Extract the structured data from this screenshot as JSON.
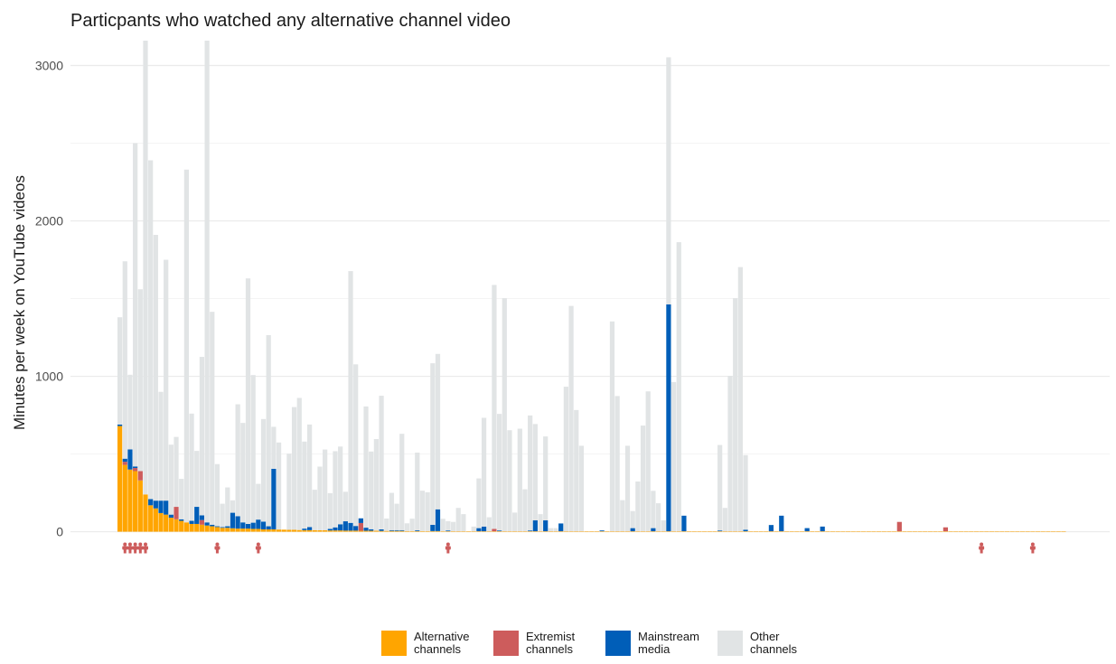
{
  "chart_data": {
    "type": "bar",
    "stacked": true,
    "title": "Particpants who watched any alternative channel video",
    "ylabel": "Minutes per week on YouTube videos",
    "xlabel": "",
    "ylim": [
      -20,
      3160
    ],
    "yticks": [
      0,
      1000,
      2000,
      3000
    ],
    "grid": true,
    "legend_position": "bottom",
    "series": [
      {
        "name": "Alternative\nchannels",
        "color": "#FFA500",
        "values": [
          680,
          430,
          400,
          390,
          330,
          240,
          170,
          150,
          120,
          110,
          90,
          80,
          70,
          60,
          50,
          50,
          45,
          40,
          35,
          30,
          25,
          25,
          22,
          20,
          20,
          20,
          18,
          18,
          15,
          15,
          15,
          14,
          13,
          12,
          12,
          11,
          10,
          10,
          10,
          9,
          9,
          8,
          8,
          8,
          7,
          7,
          7,
          6,
          6,
          6,
          6,
          5,
          5,
          5,
          5,
          5,
          4,
          4,
          4,
          4,
          4,
          4,
          4,
          3,
          3,
          3,
          3,
          3,
          3,
          3,
          3,
          3,
          3,
          3,
          3,
          3,
          3,
          3,
          3,
          3,
          3,
          3,
          3,
          3,
          3,
          3,
          3,
          3,
          3,
          3,
          3,
          3,
          3,
          3,
          3,
          3,
          3,
          3,
          3,
          3,
          3,
          3,
          3,
          3,
          3,
          3,
          3,
          3,
          3,
          3,
          3,
          3,
          3,
          3,
          3,
          3,
          3,
          3,
          3,
          3,
          3,
          3,
          3,
          3,
          3,
          3,
          3,
          3,
          3,
          3,
          3,
          3,
          3,
          3,
          3,
          3,
          3,
          3,
          3,
          3,
          3,
          3,
          3,
          3,
          3,
          3,
          3,
          3,
          3,
          3,
          3,
          3,
          3,
          3,
          3,
          3,
          3,
          3,
          3,
          3,
          3,
          3,
          3,
          3,
          3,
          3,
          3,
          3,
          3,
          3,
          3,
          3,
          3,
          3,
          3,
          3,
          3,
          3,
          3,
          3,
          3,
          3,
          3,
          3,
          3
        ]
      },
      {
        "name": "Extremist\nchannels",
        "color": "#CD5C5C",
        "values": [
          0,
          20,
          0,
          20,
          60,
          0,
          0,
          0,
          0,
          0,
          0,
          80,
          0,
          0,
          0,
          0,
          30,
          0,
          0,
          0,
          0,
          0,
          0,
          0,
          0,
          0,
          0,
          0,
          0,
          0,
          0,
          0,
          0,
          0,
          0,
          0,
          0,
          0,
          0,
          0,
          0,
          0,
          0,
          0,
          0,
          0,
          0,
          50,
          0,
          0,
          0,
          0,
          0,
          0,
          0,
          0,
          0,
          0,
          0,
          0,
          0,
          0,
          0,
          0,
          0,
          0,
          0,
          0,
          0,
          0,
          0,
          0,
          0,
          15,
          0,
          0,
          0,
          0,
          0,
          0,
          0,
          0,
          0,
          0,
          0,
          0,
          0,
          0,
          0,
          0,
          0,
          0,
          0,
          0,
          0,
          0,
          0,
          0,
          0,
          0,
          0,
          0,
          0,
          0,
          0,
          0,
          0,
          0,
          0,
          0,
          0,
          0,
          0,
          0,
          0,
          0,
          0,
          0,
          0,
          0,
          0,
          0,
          0,
          0,
          0,
          0,
          0,
          0,
          0,
          0,
          0,
          0,
          0,
          0,
          0,
          0,
          0,
          0,
          0,
          0,
          0,
          0,
          0,
          0,
          0,
          0,
          0,
          0,
          0,
          0,
          0,
          0,
          60,
          0,
          0,
          0,
          0,
          0,
          0,
          0,
          0,
          25,
          0,
          0,
          0,
          0,
          0,
          0,
          0,
          0,
          0,
          0,
          0,
          0,
          0,
          0,
          0,
          0,
          0,
          0,
          0,
          0,
          0,
          0,
          0,
          0
        ]
      },
      {
        "name": "Mainstream\nmedia",
        "color": "#005EB8",
        "values": [
          10,
          20,
          130,
          10,
          0,
          0,
          40,
          50,
          80,
          90,
          20,
          0,
          10,
          0,
          20,
          110,
          30,
          20,
          10,
          5,
          5,
          10,
          100,
          80,
          40,
          30,
          40,
          60,
          50,
          20,
          390,
          0,
          0,
          0,
          0,
          0,
          10,
          20,
          0,
          0,
          0,
          10,
          20,
          40,
          60,
          50,
          30,
          30,
          20,
          10,
          0,
          10,
          0,
          5,
          5,
          5,
          0,
          0,
          5,
          0,
          0,
          40,
          140,
          0,
          5,
          0,
          0,
          0,
          0,
          0,
          20,
          30,
          0,
          0,
          5,
          0,
          0,
          0,
          0,
          0,
          5,
          70,
          0,
          70,
          0,
          0,
          50,
          0,
          0,
          0,
          0,
          0,
          0,
          0,
          5,
          0,
          0,
          0,
          0,
          0,
          20,
          0,
          0,
          0,
          20,
          0,
          0,
          1460,
          0,
          0,
          100,
          0,
          0,
          0,
          0,
          0,
          0,
          5,
          0,
          0,
          0,
          0,
          10,
          0,
          0,
          0,
          0,
          40,
          0,
          100,
          0,
          0,
          0,
          0,
          20,
          0,
          0,
          30,
          0,
          0,
          0,
          0,
          0,
          0,
          0,
          0,
          0,
          0,
          0,
          0,
          0,
          0,
          0,
          0,
          0,
          0,
          0,
          0,
          0,
          0,
          0,
          0,
          0,
          0,
          0,
          0,
          0,
          0,
          0,
          0,
          0,
          0,
          0,
          0,
          0,
          0,
          0,
          0,
          0,
          0,
          0
        ]
      },
      {
        "name": "Other\nchannels",
        "color": "#E1E4E5",
        "values": [
          690,
          1270,
          480,
          2080,
          1170,
          3150,
          2180,
          1710,
          700,
          1550,
          450,
          450,
          260,
          2270,
          690,
          360,
          1020,
          3150,
          1370,
          400,
          150,
          250,
          80,
          720,
          640,
          1580,
          950,
          230,
          660,
          1230,
          270,
          560,
          0,
          490,
          790,
          850,
          560,
          660,
          260,
          410,
          520,
          230,
          490,
          500,
          190,
          1620,
          1040,
          0,
          780,
          500,
          590,
          860,
          80,
          240,
          170,
          620,
          50,
          80,
          500,
          260,
          250,
          1040,
          1000,
          80,
          60,
          60,
          150,
          110,
          0,
          30,
          320,
          700,
          90,
          1570,
          750,
          1500,
          650,
          120,
          660,
          270,
          740,
          620,
          110,
          540,
          20,
          20,
          0,
          930,
          1450,
          780,
          550,
          0,
          0,
          0,
          0,
          0,
          1350,
          870,
          200,
          550,
          110,
          320,
          680,
          900,
          240,
          180,
          70,
          1590,
          960,
          1860,
          0,
          0,
          0,
          0,
          0,
          0,
          0,
          550,
          150,
          1000,
          1500,
          1700,
          480,
          0,
          0,
          0,
          0,
          0,
          0,
          0,
          0,
          0,
          0,
          0,
          0,
          0,
          0,
          0,
          0,
          0,
          0,
          0,
          0,
          0,
          0,
          0,
          0,
          0,
          0,
          0,
          0,
          0,
          0,
          0,
          0,
          0,
          0,
          0,
          0,
          0,
          0,
          0,
          0,
          0,
          0,
          0,
          0,
          0,
          0,
          0,
          0,
          0,
          0,
          0,
          0,
          0,
          0,
          0,
          0,
          0,
          0,
          0,
          0,
          0,
          0,
          0,
          0,
          0
        ]
      }
    ],
    "markers": [
      1,
      2,
      3,
      4,
      5,
      19,
      27,
      64,
      168,
      178
    ]
  },
  "colors": {
    "marker": "#CD5C5C",
    "grid": "#EBEBEB",
    "tick": "#4d4d4d"
  }
}
